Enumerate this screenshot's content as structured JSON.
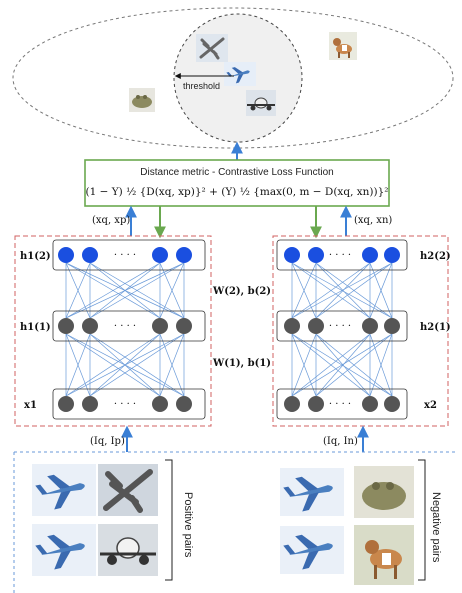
{
  "embedding_space": {
    "threshold_label": "threshold",
    "items": [
      {
        "icon": "airplane-overhead-icon"
      },
      {
        "icon": "airplane-side-icon"
      },
      {
        "icon": "airplane-front-icon"
      },
      {
        "icon": "dog-icon"
      },
      {
        "icon": "frog-icon"
      }
    ]
  },
  "loss_box": {
    "title": "Distance metric - Contrastive Loss Function",
    "formula": "(1 − Y) ½ {D(xq, xp)}² + (Y) ½ {max(0, m − D(xq, xn))}²"
  },
  "networks": {
    "left": {
      "input_pair": "(xq, xp)",
      "pair_in": "(Iq, Ip)",
      "layers": [
        "h1(2)",
        "h1(1)",
        "x1"
      ]
    },
    "right": {
      "input_pair": "(xq, xn)",
      "pair_in": "(Iq, In)",
      "layers": [
        "h2(2)",
        "h2(1)",
        "x2"
      ]
    },
    "weights_top": "W(2), b(2)",
    "weights_bottom": "W(1), b(1)",
    "dots": "· · · ·"
  },
  "pairs": {
    "positive_label": "Positive pairs",
    "negative_label": "Negative pairs"
  },
  "colors": {
    "accent_blue": "#1a4fe0",
    "node_gray": "#555555",
    "loss_border": "#6aa84f",
    "dash_red": "#d06060",
    "arrow_blue": "#3a7fd5",
    "arrow_green": "#6aa84f"
  }
}
